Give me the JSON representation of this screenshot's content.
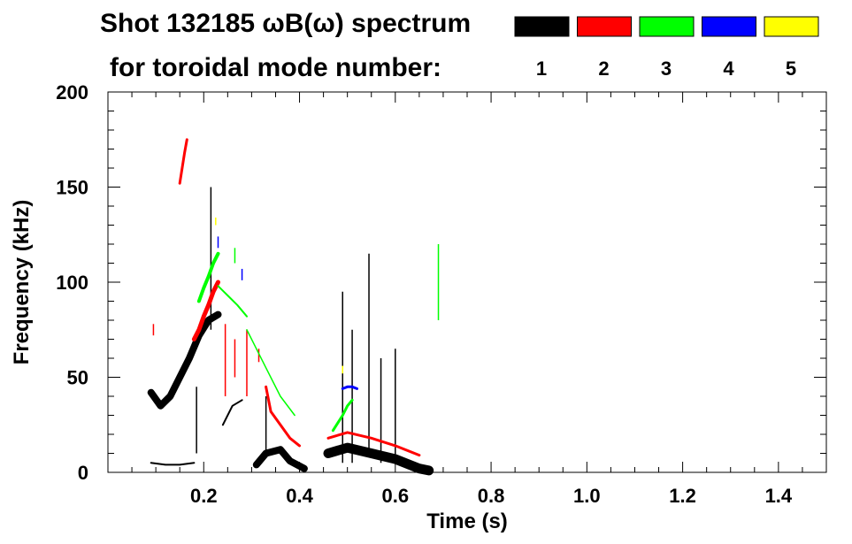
{
  "chart_data": {
    "type": "heatmap",
    "title_line1": "Shot 132185 ωB(ω) spectrum",
    "title_line2": "for toroidal mode number:",
    "xlabel": "Time (s)",
    "ylabel": "Frequency (kHz)",
    "xlim": [
      0,
      1.5
    ],
    "ylim": [
      0,
      200
    ],
    "x_ticks": [
      {
        "value": 0.2,
        "label": "0.2"
      },
      {
        "value": 0.4,
        "label": "0.4"
      },
      {
        "value": 0.6,
        "label": "0.6"
      },
      {
        "value": 0.8,
        "label": "0.8"
      },
      {
        "value": 1.0,
        "label": "1.0"
      },
      {
        "value": 1.2,
        "label": "1.2"
      },
      {
        "value": 1.4,
        "label": "1.4"
      }
    ],
    "y_ticks": [
      {
        "value": 0,
        "label": "0"
      },
      {
        "value": 50,
        "label": "50"
      },
      {
        "value": 100,
        "label": "100"
      },
      {
        "value": 150,
        "label": "150"
      },
      {
        "value": 200,
        "label": "200"
      }
    ],
    "legend": {
      "placement": "top-right",
      "entries": [
        {
          "label": "1",
          "color": "#000000"
        },
        {
          "label": "2",
          "color": "#ff0000"
        },
        {
          "label": "3",
          "color": "#00ff00"
        },
        {
          "label": "4",
          "color": "#0000ff"
        },
        {
          "label": "5",
          "color": "#ffff00"
        }
      ]
    },
    "series": [
      {
        "mode": "1",
        "color": "#000000",
        "bands": [
          {
            "points": [
              [
                0.09,
                42
              ],
              [
                0.11,
                35
              ],
              [
                0.13,
                40
              ],
              [
                0.15,
                50
              ],
              [
                0.17,
                60
              ],
              [
                0.19,
                72
              ],
              [
                0.21,
                80
              ],
              [
                0.23,
                83
              ]
            ],
            "width": 8
          },
          {
            "points": [
              [
                0.09,
                5
              ],
              [
                0.12,
                4
              ],
              [
                0.15,
                4
              ],
              [
                0.18,
                5
              ]
            ],
            "width": 2
          },
          {
            "points": [
              [
                0.24,
                25
              ],
              [
                0.26,
                35
              ],
              [
                0.28,
                38
              ]
            ],
            "width": 2
          },
          {
            "points": [
              [
                0.31,
                4
              ],
              [
                0.33,
                10
              ],
              [
                0.36,
                12
              ],
              [
                0.38,
                6
              ],
              [
                0.41,
                2
              ]
            ],
            "width": 8
          },
          {
            "points": [
              [
                0.46,
                10
              ],
              [
                0.5,
                13
              ],
              [
                0.55,
                10
              ],
              [
                0.6,
                7
              ],
              [
                0.65,
                2
              ],
              [
                0.67,
                1
              ]
            ],
            "width": 11
          }
        ],
        "lines": [
          {
            "t": 0.49,
            "f": [
              5,
              95
            ]
          },
          {
            "t": 0.51,
            "f": [
              5,
              75
            ]
          },
          {
            "t": 0.545,
            "f": [
              8,
              115
            ]
          },
          {
            "t": 0.57,
            "f": [
              5,
              60
            ]
          },
          {
            "t": 0.6,
            "f": [
              5,
              65
            ]
          },
          {
            "t": 0.215,
            "f": [
              75,
              150
            ]
          },
          {
            "t": 0.33,
            "f": [
              10,
              40
            ]
          },
          {
            "t": 0.185,
            "f": [
              10,
              45
            ]
          }
        ]
      },
      {
        "mode": "2",
        "color": "#ff0000",
        "bands": [
          {
            "points": [
              [
                0.18,
                70
              ],
              [
                0.19,
                75
              ],
              [
                0.2,
                82
              ],
              [
                0.21,
                88
              ],
              [
                0.22,
                95
              ],
              [
                0.23,
                100
              ]
            ],
            "width": 5
          },
          {
            "points": [
              [
                0.33,
                45
              ],
              [
                0.34,
                32
              ],
              [
                0.36,
                25
              ],
              [
                0.38,
                18
              ],
              [
                0.4,
                14
              ]
            ],
            "width": 3
          },
          {
            "points": [
              [
                0.46,
                18
              ],
              [
                0.5,
                21
              ],
              [
                0.55,
                18
              ],
              [
                0.6,
                14
              ],
              [
                0.65,
                9
              ]
            ],
            "width": 3
          },
          {
            "points": [
              [
                0.15,
                152
              ],
              [
                0.155,
                160
              ],
              [
                0.16,
                168
              ],
              [
                0.165,
                175
              ]
            ],
            "width": 3
          }
        ],
        "lines": [
          {
            "t": 0.245,
            "f": [
              40,
              78
            ]
          },
          {
            "t": 0.265,
            "f": [
              50,
              70
            ]
          },
          {
            "t": 0.095,
            "f": [
              72,
              78
            ]
          },
          {
            "t": 0.29,
            "f": [
              40,
              75
            ]
          },
          {
            "t": 0.315,
            "f": [
              58,
              65
            ]
          }
        ]
      },
      {
        "mode": "3",
        "color": "#00ff00",
        "bands": [
          {
            "points": [
              [
                0.19,
                90
              ],
              [
                0.2,
                97
              ],
              [
                0.21,
                103
              ],
              [
                0.22,
                110
              ],
              [
                0.23,
                115
              ]
            ],
            "width": 4
          },
          {
            "points": [
              [
                0.23,
                98
              ],
              [
                0.25,
                93
              ],
              [
                0.27,
                88
              ],
              [
                0.29,
                82
              ]
            ],
            "width": 2
          },
          {
            "points": [
              [
                0.29,
                75
              ],
              [
                0.31,
                65
              ],
              [
                0.33,
                55
              ],
              [
                0.36,
                40
              ],
              [
                0.39,
                30
              ]
            ],
            "width": 1.5
          },
          {
            "points": [
              [
                0.47,
                22
              ],
              [
                0.49,
                30
              ],
              [
                0.5,
                35
              ],
              [
                0.51,
                38
              ]
            ],
            "width": 3
          }
        ],
        "lines": [
          {
            "t": 0.69,
            "f": [
              80,
              120
            ]
          },
          {
            "t": 0.265,
            "f": [
              110,
              118
            ]
          }
        ]
      },
      {
        "mode": "4",
        "color": "#0000ff",
        "bands": [
          {
            "points": [
              [
                0.49,
                44
              ],
              [
                0.5,
                45
              ],
              [
                0.51,
                45
              ],
              [
                0.52,
                44
              ]
            ],
            "width": 3
          }
        ],
        "lines": [
          {
            "t": 0.23,
            "f": [
              118,
              124
            ]
          },
          {
            "t": 0.28,
            "f": [
              101,
              107
            ]
          }
        ]
      },
      {
        "mode": "5",
        "color": "#ffff00",
        "bands": [],
        "lines": [
          {
            "t": 0.49,
            "f": [
              52,
              56
            ]
          },
          {
            "t": 0.225,
            "f": [
              130,
              134
            ]
          }
        ]
      }
    ]
  }
}
